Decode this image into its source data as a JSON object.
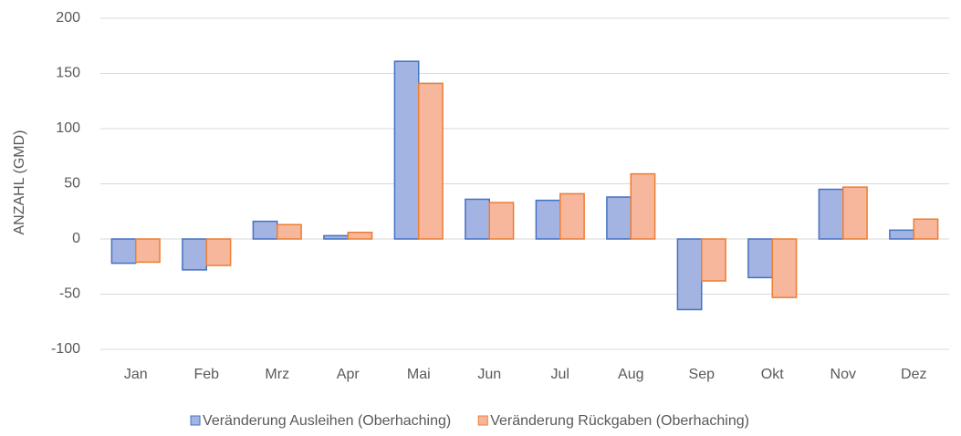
{
  "chart_data": {
    "type": "bar",
    "y_label": "ANZAHL (GMD)",
    "categories": [
      "Jan",
      "Feb",
      "Mrz",
      "Apr",
      "Mai",
      "Jun",
      "Jul",
      "Aug",
      "Sep",
      "Okt",
      "Nov",
      "Dez"
    ],
    "series": [
      {
        "name": "Veränderung Ausleihen (Oberhaching)",
        "color": "#4472c4",
        "fill": "#a3b4e3",
        "values": [
          -22,
          -28,
          16,
          3,
          161,
          36,
          35,
          38,
          -64,
          -35,
          45,
          8
        ]
      },
      {
        "name": "Veränderung Rückgaben (Oberhaching)",
        "color": "#ed7d31",
        "fill": "#f6b79c",
        "values": [
          -21,
          -24,
          13,
          6,
          141,
          33,
          41,
          59,
          -38,
          -53,
          47,
          18
        ]
      }
    ],
    "ylim": [
      -100,
      200
    ],
    "yticks": [
      -100,
      -50,
      0,
      50,
      100,
      150,
      200
    ],
    "grid": true,
    "legend": "bottom"
  }
}
